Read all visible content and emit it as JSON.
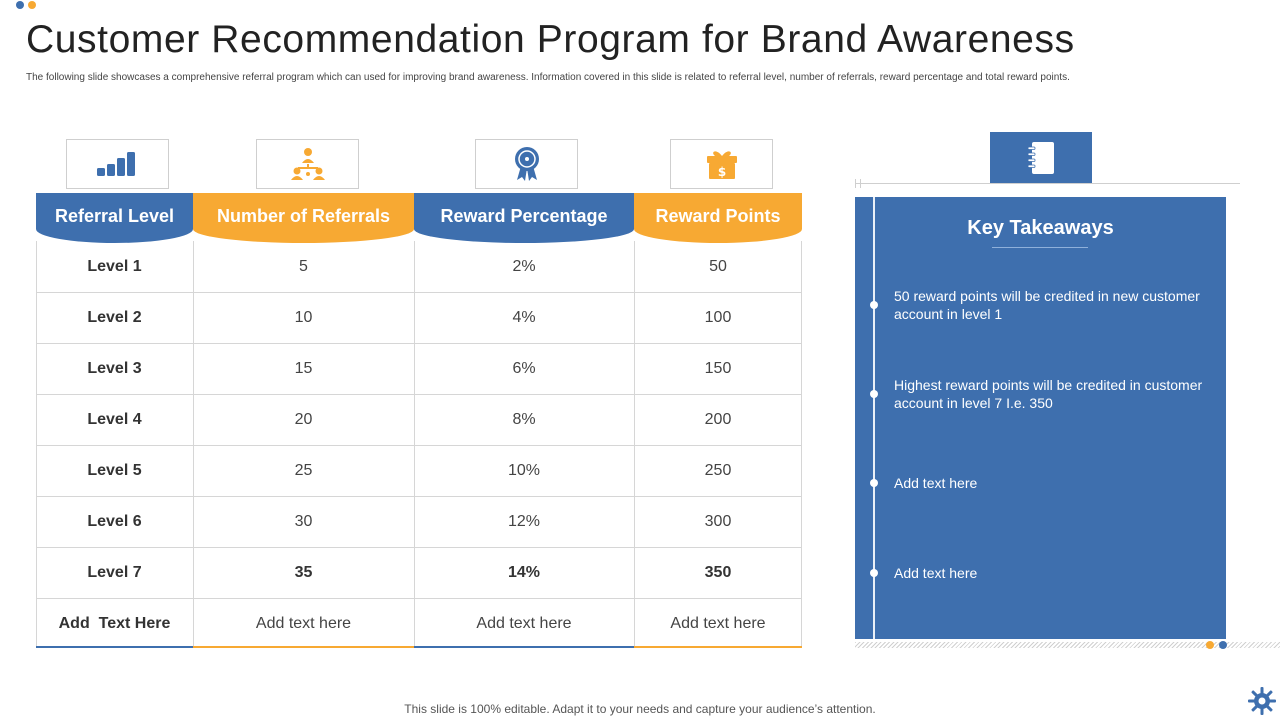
{
  "colors": {
    "blue": "#3e6fae",
    "orange": "#f7a933",
    "text": "#333333"
  },
  "title": "Customer Recommendation Program for Brand Awareness",
  "subtitle": "The following slide showcases a comprehensive referral program which can used for improving brand awareness. Information covered in this slide is related to referral level, number of referrals, reward percentage and total reward points.",
  "icons": [
    "bar-chart-icon",
    "hierarchy-icon",
    "award-ribbon-icon",
    "gift-dollar-icon"
  ],
  "table": {
    "headers": [
      "Referral Level",
      "Number of Referrals",
      "Reward Percentage",
      "Reward Points"
    ],
    "rows": [
      [
        "Level 1",
        "5",
        "2%",
        "50"
      ],
      [
        "Level 2",
        "10",
        "4%",
        "100"
      ],
      [
        "Level 3",
        "15",
        "6%",
        "150"
      ],
      [
        "Level 4",
        "20",
        "8%",
        "200"
      ],
      [
        "Level 5",
        "25",
        "10%",
        "250"
      ],
      [
        "Level 6",
        "30",
        "12%",
        "300"
      ],
      [
        "Level 7",
        "35",
        "14%",
        "350"
      ],
      [
        "Add  Text Here",
        "Add text here",
        "Add text here",
        "Add text here"
      ]
    ]
  },
  "takeaways": {
    "icon": "notebook-icon",
    "title": "Key Takeaways",
    "items": [
      "50 reward points will be credited in new customer account in level 1",
      "Highest reward points will be credited in customer account in level 7 I.e. 350",
      "Add text here",
      "Add text here"
    ]
  },
  "footer": "This slide is 100% editable. Adapt it to your needs and capture your audience’s attention."
}
